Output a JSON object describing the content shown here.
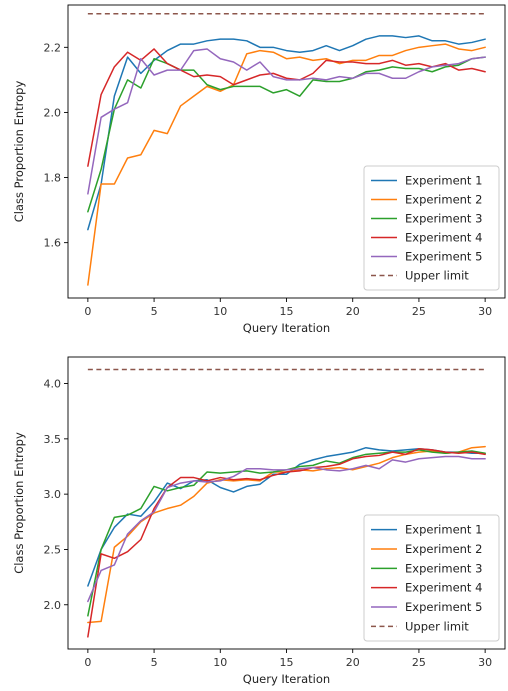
{
  "chart_data": [
    {
      "type": "line",
      "xlabel": "Query Iteration",
      "ylabel": "Class Proportion Entropy",
      "xlim": [
        -1.5,
        31.5
      ],
      "ylim": [
        1.43,
        2.33
      ],
      "xticks": [
        0,
        5,
        10,
        15,
        20,
        25,
        30
      ],
      "yticks": [
        1.6,
        1.8,
        2.0,
        2.2
      ],
      "legend_position": "lower-right",
      "grid": false,
      "x": [
        0,
        1,
        2,
        3,
        4,
        5,
        6,
        7,
        8,
        9,
        10,
        11,
        12,
        13,
        14,
        15,
        16,
        17,
        18,
        19,
        20,
        21,
        22,
        23,
        24,
        25,
        26,
        27,
        28,
        29,
        30
      ],
      "series": [
        {
          "name": "Experiment 1",
          "color": "#1f77b4",
          "values": [
            1.64,
            1.78,
            2.05,
            2.17,
            2.12,
            2.16,
            2.19,
            2.21,
            2.21,
            2.22,
            2.225,
            2.225,
            2.22,
            2.2,
            2.2,
            2.19,
            2.185,
            2.19,
            2.205,
            2.19,
            2.205,
            2.225,
            2.235,
            2.235,
            2.23,
            2.235,
            2.22,
            2.22,
            2.21,
            2.215,
            2.225
          ]
        },
        {
          "name": "Experiment 2",
          "color": "#ff7f0e",
          "values": [
            1.47,
            1.78,
            1.78,
            1.86,
            1.87,
            1.945,
            1.935,
            2.02,
            2.05,
            2.08,
            2.065,
            2.085,
            2.18,
            2.19,
            2.185,
            2.165,
            2.17,
            2.16,
            2.165,
            2.15,
            2.16,
            2.16,
            2.175,
            2.175,
            2.19,
            2.2,
            2.205,
            2.21,
            2.195,
            2.19,
            2.2
          ]
        },
        {
          "name": "Experiment 3",
          "color": "#2ca02c",
          "values": [
            1.695,
            1.825,
            2.01,
            2.1,
            2.075,
            2.165,
            2.15,
            2.13,
            2.13,
            2.085,
            2.07,
            2.08,
            2.08,
            2.08,
            2.06,
            2.07,
            2.05,
            2.1,
            2.095,
            2.095,
            2.105,
            2.125,
            2.13,
            2.14,
            2.135,
            2.135,
            2.125,
            2.14,
            2.145,
            2.165,
            2.17
          ]
        },
        {
          "name": "Experiment 4",
          "color": "#d62728",
          "values": [
            1.835,
            2.055,
            2.14,
            2.185,
            2.16,
            2.195,
            2.15,
            2.13,
            2.11,
            2.115,
            2.11,
            2.085,
            2.1,
            2.115,
            2.12,
            2.105,
            2.1,
            2.12,
            2.16,
            2.155,
            2.155,
            2.15,
            2.15,
            2.16,
            2.145,
            2.15,
            2.14,
            2.15,
            2.13,
            2.135,
            2.125
          ]
        },
        {
          "name": "Experiment 5",
          "color": "#9467bd",
          "values": [
            1.75,
            1.985,
            2.01,
            2.03,
            2.165,
            2.115,
            2.13,
            2.13,
            2.19,
            2.195,
            2.165,
            2.155,
            2.13,
            2.155,
            2.11,
            2.1,
            2.1,
            2.105,
            2.1,
            2.11,
            2.105,
            2.12,
            2.12,
            2.105,
            2.105,
            2.125,
            2.14,
            2.145,
            2.15,
            2.165,
            2.17
          ]
        },
        {
          "name": "Upper limit",
          "color": "#8c564b",
          "dashed": true,
          "values": [
            2.303,
            2.303,
            2.303,
            2.303,
            2.303,
            2.303,
            2.303,
            2.303,
            2.303,
            2.303,
            2.303,
            2.303,
            2.303,
            2.303,
            2.303,
            2.303,
            2.303,
            2.303,
            2.303,
            2.303,
            2.303,
            2.303,
            2.303,
            2.303,
            2.303,
            2.303,
            2.303,
            2.303,
            2.303,
            2.303,
            2.303
          ]
        }
      ]
    },
    {
      "type": "line",
      "xlabel": "Query Iteration",
      "ylabel": "Class Proportion Entropy",
      "xlim": [
        -1.5,
        31.5
      ],
      "ylim": [
        1.6,
        4.24
      ],
      "xticks": [
        0,
        5,
        10,
        15,
        20,
        25,
        30
      ],
      "yticks": [
        2.0,
        2.5,
        3.0,
        3.5,
        4.0
      ],
      "legend_position": "lower-right",
      "grid": false,
      "x": [
        0,
        1,
        2,
        3,
        4,
        5,
        6,
        7,
        8,
        9,
        10,
        11,
        12,
        13,
        14,
        15,
        16,
        17,
        18,
        19,
        20,
        21,
        22,
        23,
        24,
        25,
        26,
        27,
        28,
        29,
        30
      ],
      "series": [
        {
          "name": "Experiment 1",
          "color": "#1f77b4",
          "values": [
            2.17,
            2.5,
            2.7,
            2.82,
            2.8,
            2.93,
            3.1,
            3.05,
            3.12,
            3.13,
            3.06,
            3.02,
            3.07,
            3.09,
            3.18,
            3.18,
            3.27,
            3.31,
            3.34,
            3.36,
            3.38,
            3.42,
            3.4,
            3.39,
            3.4,
            3.41,
            3.4,
            3.38,
            3.38,
            3.37,
            3.37
          ]
        },
        {
          "name": "Experiment 2",
          "color": "#ff7f0e",
          "values": [
            1.84,
            1.85,
            2.52,
            2.62,
            2.75,
            2.83,
            2.87,
            2.9,
            2.98,
            3.1,
            3.13,
            3.12,
            3.13,
            3.12,
            3.2,
            3.2,
            3.22,
            3.21,
            3.23,
            3.24,
            3.22,
            3.25,
            3.28,
            3.33,
            3.36,
            3.38,
            3.39,
            3.37,
            3.38,
            3.42,
            3.43
          ]
        },
        {
          "name": "Experiment 3",
          "color": "#2ca02c",
          "values": [
            1.9,
            2.5,
            2.79,
            2.81,
            2.87,
            3.07,
            3.03,
            3.06,
            3.08,
            3.2,
            3.19,
            3.2,
            3.21,
            3.19,
            3.2,
            3.22,
            3.25,
            3.26,
            3.3,
            3.28,
            3.33,
            3.36,
            3.37,
            3.38,
            3.38,
            3.4,
            3.38,
            3.37,
            3.38,
            3.39,
            3.37
          ]
        },
        {
          "name": "Experiment 4",
          "color": "#d62728",
          "values": [
            1.71,
            2.46,
            2.42,
            2.48,
            2.59,
            2.87,
            3.06,
            3.15,
            3.15,
            3.12,
            3.15,
            3.13,
            3.14,
            3.13,
            3.17,
            3.2,
            3.21,
            3.24,
            3.25,
            3.27,
            3.32,
            3.34,
            3.35,
            3.38,
            3.36,
            3.41,
            3.4,
            3.38,
            3.37,
            3.38,
            3.36
          ]
        },
        {
          "name": "Experiment 5",
          "color": "#9467bd",
          "values": [
            2.03,
            2.31,
            2.36,
            2.64,
            2.76,
            2.84,
            3.06,
            3.1,
            3.12,
            3.11,
            3.12,
            3.16,
            3.23,
            3.23,
            3.22,
            3.22,
            3.23,
            3.24,
            3.22,
            3.21,
            3.23,
            3.26,
            3.23,
            3.31,
            3.29,
            3.32,
            3.33,
            3.34,
            3.34,
            3.32,
            3.32
          ]
        },
        {
          "name": "Upper limit",
          "color": "#8c564b",
          "dashed": true,
          "values": [
            4.127,
            4.127,
            4.127,
            4.127,
            4.127,
            4.127,
            4.127,
            4.127,
            4.127,
            4.127,
            4.127,
            4.127,
            4.127,
            4.127,
            4.127,
            4.127,
            4.127,
            4.127,
            4.127,
            4.127,
            4.127,
            4.127,
            4.127,
            4.127,
            4.127,
            4.127,
            4.127,
            4.127,
            4.127,
            4.127,
            4.127
          ]
        }
      ]
    }
  ]
}
